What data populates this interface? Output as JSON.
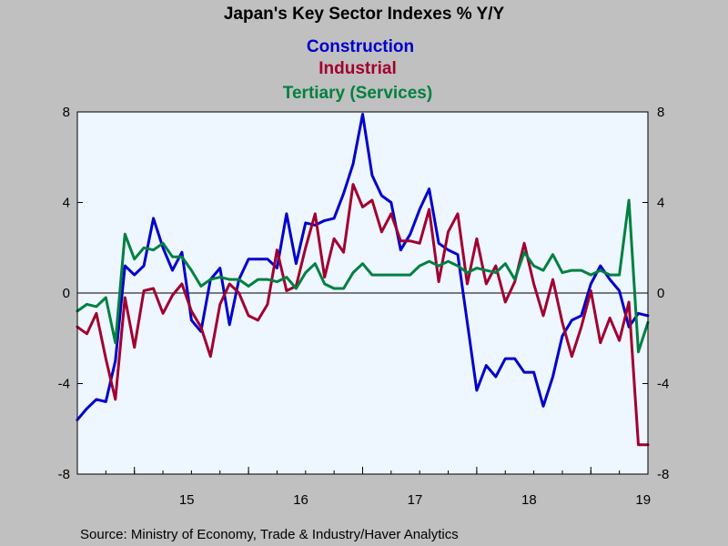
{
  "chart_data": {
    "type": "line",
    "title": "Japan's Key Sector Indexes % Y/Y",
    "source": "Source:  Ministry of Economy, Trade & Industry/Haver Analytics",
    "ylim": [
      -8,
      8
    ],
    "yticks": [
      "8",
      "4",
      "0",
      "-4",
      "-8"
    ],
    "ytick_values": [
      8,
      4,
      0,
      -4,
      -8
    ],
    "year_labels": [
      "15",
      "16",
      "17",
      "18",
      "19"
    ],
    "x_start": "2014-07",
    "colors": {
      "background": "#c0c0c0",
      "plot": "#eef6ff",
      "zero_line": "#000000"
    },
    "series": [
      {
        "name": "Construction",
        "color": "#0000cc",
        "values": [
          -5.6,
          -5.1,
          -4.7,
          -4.8,
          -3.0,
          1.2,
          0.8,
          1.2,
          3.3,
          2.0,
          1.0,
          1.8,
          -1.2,
          -1.7,
          0.6,
          1.1,
          -1.4,
          0.6,
          1.5,
          1.5,
          1.5,
          1.1,
          3.5,
          1.3,
          3.1,
          3.0,
          3.2,
          3.3,
          4.4,
          5.7,
          7.9,
          5.2,
          4.3,
          4.0,
          1.9,
          2.6,
          3.7,
          4.6,
          2.2,
          1.9,
          1.7,
          -1.3,
          -4.3,
          -3.2,
          -3.7,
          -2.9,
          -2.9,
          -3.5,
          -3.5,
          -5.0,
          -3.7,
          -1.9,
          -1.2,
          -1.0,
          0.4,
          1.2,
          0.6,
          0.1,
          -1.5,
          -0.9,
          -1.0
        ]
      },
      {
        "name": "Industrial",
        "color": "#a00030",
        "values": [
          -1.5,
          -1.8,
          -0.9,
          -2.9,
          -4.7,
          -0.2,
          -2.4,
          0.1,
          0.2,
          -0.9,
          -0.1,
          0.4,
          -0.8,
          -1.5,
          -2.8,
          -0.5,
          0.4,
          0.0,
          -1.0,
          -1.2,
          -0.5,
          1.9,
          0.1,
          0.3,
          2.0,
          3.5,
          0.7,
          2.4,
          1.8,
          4.8,
          3.8,
          4.1,
          2.7,
          3.5,
          2.3,
          2.3,
          2.2,
          3.7,
          0.5,
          2.7,
          3.5,
          0.4,
          2.4,
          0.4,
          1.2,
          -0.4,
          0.5,
          2.2,
          0.4,
          -1.0,
          0.6,
          -1.3,
          -2.8,
          -1.5,
          0.1,
          -2.2,
          -1.1,
          -2.1,
          -0.4,
          -6.7,
          -6.7
        ]
      },
      {
        "name": "Tertiary (Services)",
        "color": "#008040",
        "values": [
          -0.8,
          -0.5,
          -0.6,
          -0.2,
          -2.2,
          2.6,
          1.5,
          2.0,
          1.9,
          2.2,
          1.6,
          1.6,
          1.0,
          0.3,
          0.6,
          0.7,
          0.6,
          0.6,
          0.3,
          0.6,
          0.6,
          0.5,
          0.7,
          0.2,
          0.9,
          1.3,
          0.4,
          0.2,
          0.2,
          0.9,
          1.3,
          0.8,
          0.8,
          0.8,
          0.8,
          0.8,
          1.2,
          1.4,
          1.2,
          1.4,
          1.2,
          0.9,
          1.1,
          1.0,
          0.9,
          1.3,
          0.6,
          1.8,
          1.2,
          1.0,
          1.7,
          0.9,
          1.0,
          1.0,
          0.8,
          1.0,
          0.8,
          0.8,
          4.1,
          -2.6,
          -1.3
        ]
      }
    ]
  }
}
